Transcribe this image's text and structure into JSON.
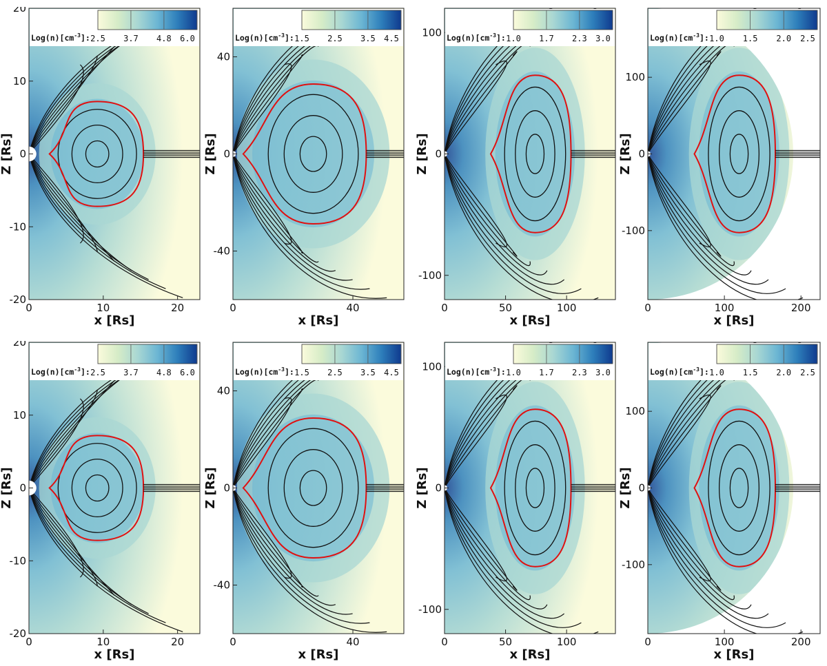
{
  "figure": {
    "axis_labels": {
      "x": "x [Rs]",
      "z": "Z [Rs]"
    },
    "colorbar_title": "Log(n)[cm",
    "colorbar_title_exp": "-3",
    "colorbar_title_tail": "]:",
    "colors": {
      "colormap": [
        "#fbfbdc",
        "#d6ecc7",
        "#a9d7d3",
        "#6cb6d3",
        "#2e7fbb",
        "#0f3a8e"
      ],
      "separatrix": "#e01010",
      "field_lines": "#111111"
    },
    "columns": [
      {
        "xlim": [
          0,
          23
        ],
        "ylim": [
          -20,
          20
        ],
        "xticks": [
          0,
          10,
          20
        ],
        "yticks": [
          -20,
          -10,
          0,
          10,
          20
        ],
        "colorbar_labels": [
          "2.5",
          "3.7",
          "4.8",
          "6.0"
        ]
      },
      {
        "xlim": [
          0,
          57
        ],
        "ylim": [
          -60,
          60
        ],
        "xticks": [
          0,
          40
        ],
        "yticks": [
          -40,
          0,
          40
        ],
        "colorbar_labels": [
          "1.5",
          "2.5",
          "3.5",
          "4.5"
        ]
      },
      {
        "xlim": [
          0,
          140
        ],
        "ylim": [
          -120,
          120
        ],
        "xticks": [
          0,
          50,
          100
        ],
        "yticks": [
          -100,
          0,
          100
        ],
        "colorbar_labels": [
          "1.0",
          "1.7",
          "2.3",
          "3.0"
        ]
      },
      {
        "xlim": [
          0,
          225
        ],
        "ylim": [
          -190,
          190
        ],
        "xticks": [
          0,
          100,
          200
        ],
        "yticks": [
          -100,
          0,
          100
        ],
        "colorbar_labels": [
          "1.0",
          "1.5",
          "2.0",
          "2.5"
        ]
      }
    ],
    "rows": [
      {
        "row": "top"
      },
      {
        "row": "bottom"
      }
    ]
  }
}
